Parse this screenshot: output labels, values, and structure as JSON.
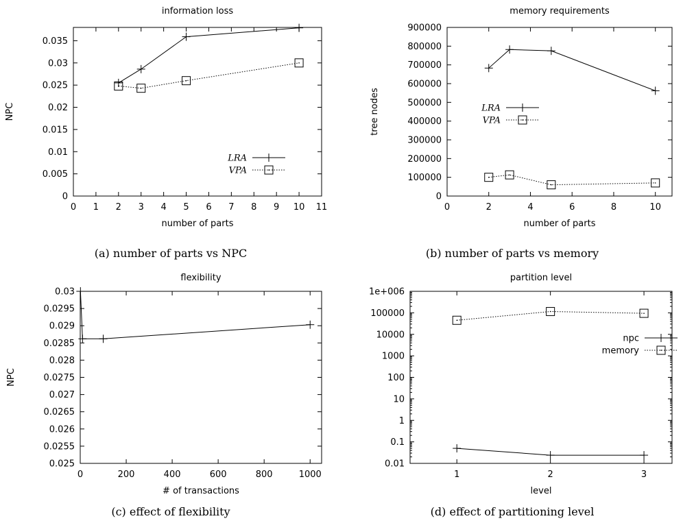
{
  "chart_data": [
    {
      "id": "a",
      "type": "line",
      "title": "information loss",
      "caption": "(a) number of parts vs NPC",
      "xlabel": "number of parts",
      "ylabel": "NPC",
      "xlim": [
        0,
        11
      ],
      "ylim": [
        0,
        0.038
      ],
      "x_ticks": [
        "0",
        "1",
        "2",
        "3",
        "4",
        "5",
        "6",
        "7",
        "8",
        "9",
        "10",
        "11"
      ],
      "y_ticks": [
        "0",
        "0.005",
        "0.01",
        "0.015",
        "0.02",
        "0.025",
        "0.03",
        "0.035"
      ],
      "legend_position": "bottom-right",
      "series": [
        {
          "name": "LRA",
          "marker": "plus",
          "line": "solid",
          "x": [
            2,
            3,
            5,
            10
          ],
          "y": [
            0.0255,
            0.0286,
            0.0359,
            0.0379
          ]
        },
        {
          "name": "VPA",
          "marker": "square",
          "line": "dotted",
          "x": [
            2,
            3,
            5,
            10
          ],
          "y": [
            0.0248,
            0.0243,
            0.026,
            0.03
          ]
        }
      ]
    },
    {
      "id": "b",
      "type": "line",
      "title": "memory requirements",
      "caption": "(b) number of parts vs memory",
      "xlabel": "number of parts",
      "ylabel": "tree nodes",
      "xlim": [
        0,
        10.8
      ],
      "ylim": [
        0,
        900000
      ],
      "x_ticks": [
        "0",
        "2",
        "4",
        "6",
        "8",
        "10"
      ],
      "y_ticks": [
        "0",
        "100000",
        "200000",
        "300000",
        "400000",
        "500000",
        "600000",
        "700000",
        "800000",
        "900000"
      ],
      "legend_position": "center",
      "series": [
        {
          "name": "LRA",
          "marker": "plus",
          "line": "solid",
          "x": [
            2,
            3,
            5,
            10
          ],
          "y": [
            683000,
            782000,
            775000,
            562000
          ]
        },
        {
          "name": "VPA",
          "marker": "square",
          "line": "dotted",
          "x": [
            2,
            3,
            5,
            10
          ],
          "y": [
            100000,
            113000,
            60000,
            70000
          ]
        }
      ]
    },
    {
      "id": "c",
      "type": "line",
      "title": "flexibility",
      "caption": "(c) effect of flexibility",
      "xlabel": "# of transactions",
      "ylabel": "NPC",
      "xlim": [
        0,
        1050
      ],
      "ylim": [
        0.025,
        0.03
      ],
      "x_ticks": [
        "0",
        "200",
        "400",
        "600",
        "800",
        "1000"
      ],
      "y_ticks": [
        "0.025",
        "0.0255",
        "0.026",
        "0.0265",
        "0.027",
        "0.0275",
        "0.028",
        "0.0285",
        "0.029",
        "0.0295",
        "0.03"
      ],
      "series": [
        {
          "name": "",
          "marker": "plus",
          "line": "solid",
          "x": [
            1,
            10,
            100,
            1000
          ],
          "y": [
            0.03,
            0.02862,
            0.02862,
            0.02903
          ]
        }
      ]
    },
    {
      "id": "d",
      "type": "line",
      "title": "partition level",
      "caption": "(d) effect of partitioning level",
      "xlabel": "level",
      "ylabel": "",
      "xlim": [
        0.5,
        3.3
      ],
      "ylim": [
        0.01,
        1000000
      ],
      "yscale": "log",
      "x_ticks": [
        "1",
        "2",
        "3"
      ],
      "y_ticks": [
        "0.01",
        "0.1",
        "1",
        "10",
        "100",
        "1000",
        "10000",
        "100000",
        "1e+006"
      ],
      "legend_position": "right",
      "series": [
        {
          "name": "npc",
          "marker": "plus",
          "line": "solid",
          "x": [
            1,
            2,
            3
          ],
          "y": [
            0.05,
            0.024,
            0.024
          ]
        },
        {
          "name": "memory",
          "marker": "square",
          "line": "dotted",
          "x": [
            1,
            2,
            3
          ],
          "y": [
            45000,
            115000,
            95000
          ]
        }
      ]
    }
  ]
}
